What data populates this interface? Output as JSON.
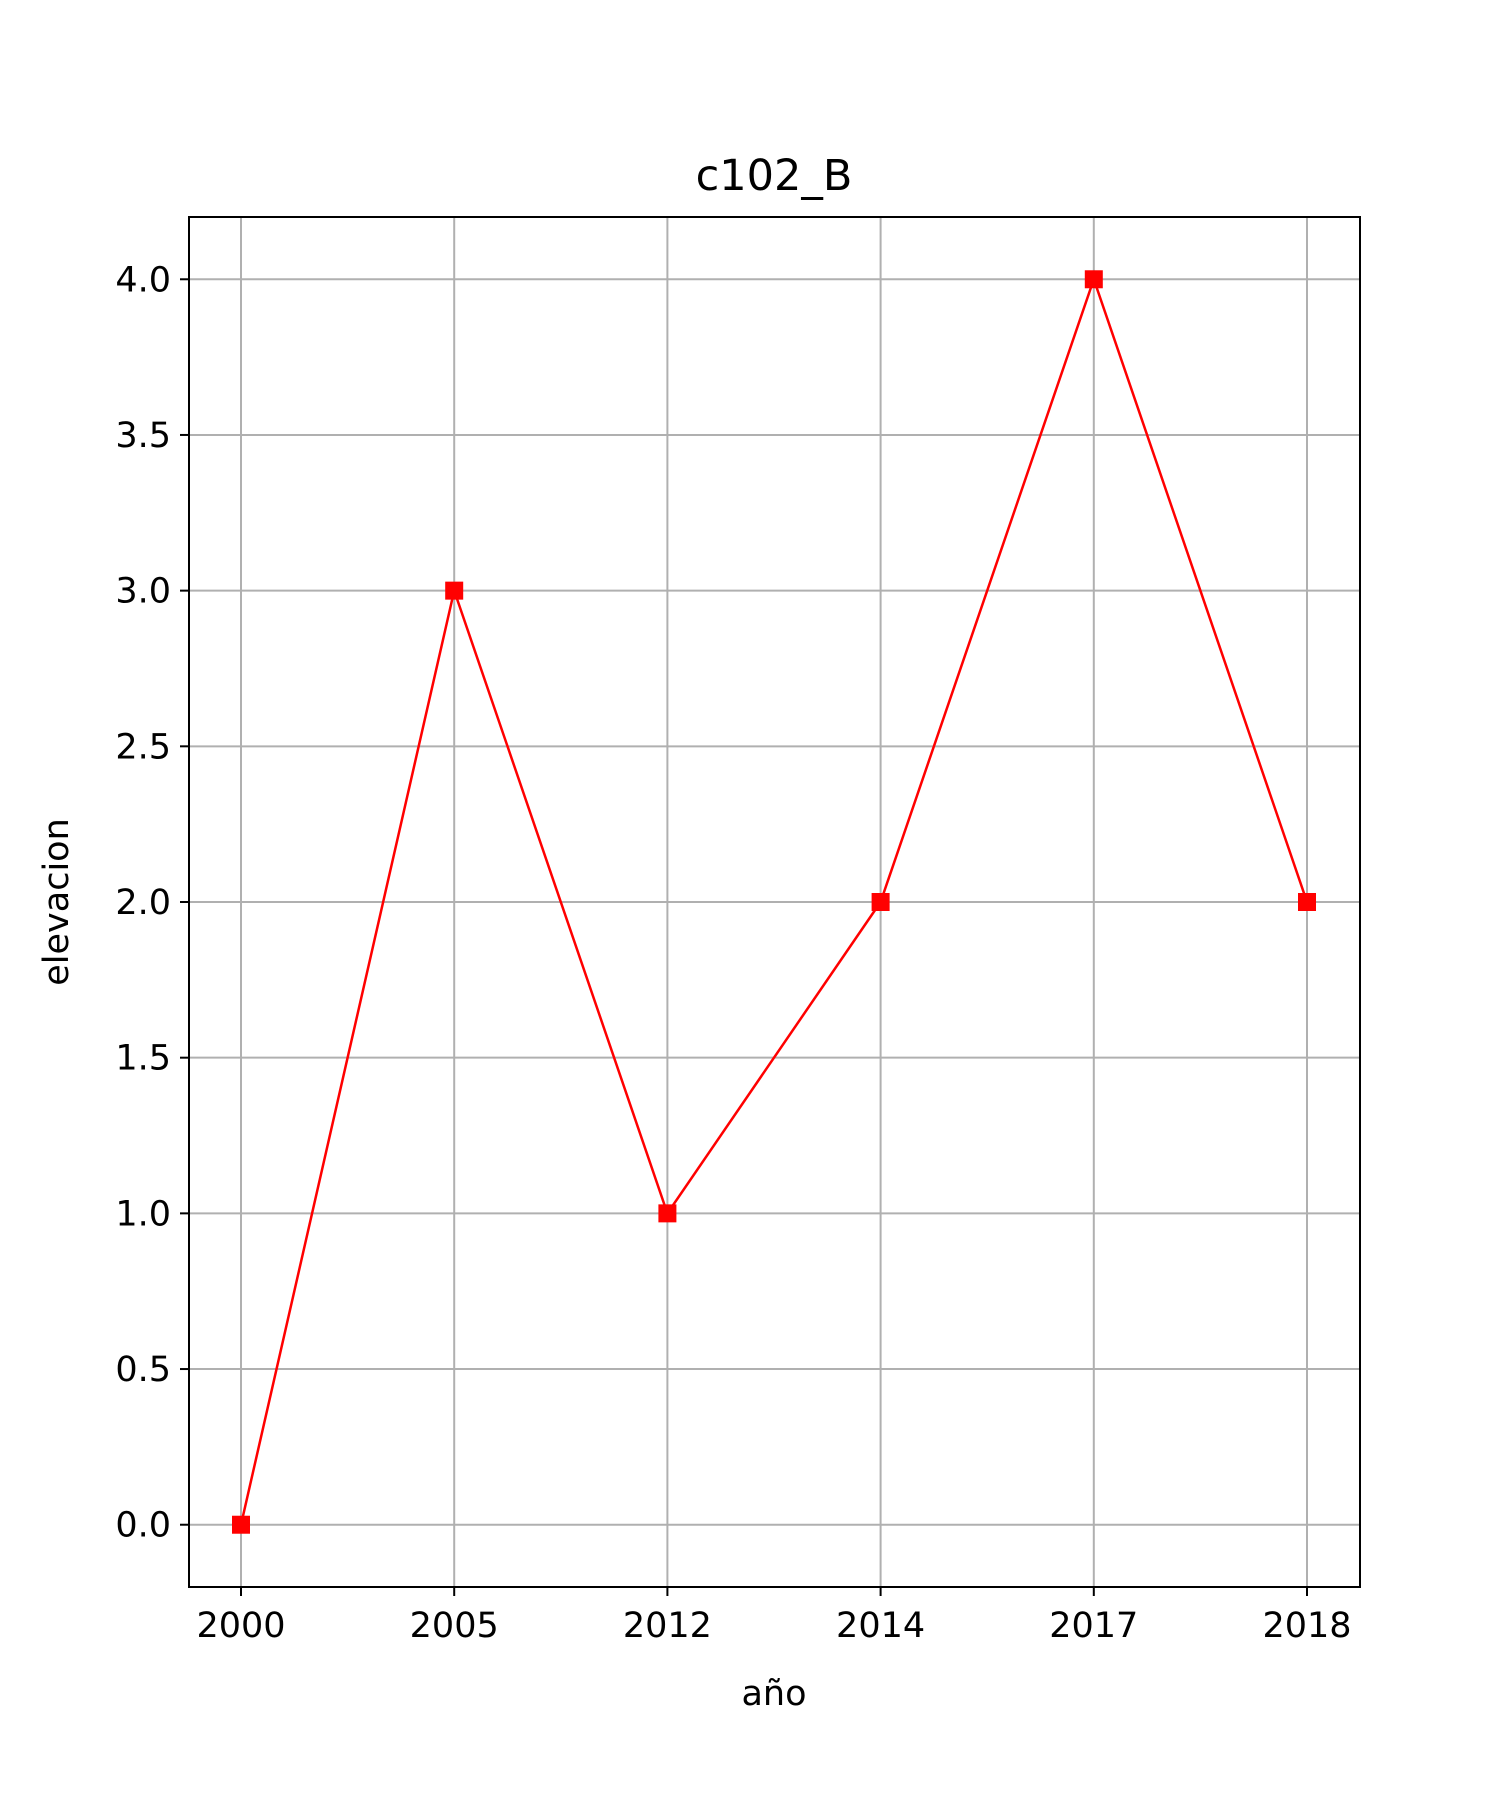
{
  "chart_data": {
    "type": "line",
    "title": "c102_B",
    "xlabel": "año",
    "ylabel": "elevacion",
    "categories": [
      "2000",
      "2005",
      "2012",
      "2014",
      "2017",
      "2018"
    ],
    "series": [
      {
        "values": [
          0,
          3,
          1,
          2,
          4,
          2
        ],
        "color": "#ff0000",
        "marker": "square"
      }
    ],
    "ylim": [
      -0.2,
      4.2
    ],
    "yticks": [
      "0.0",
      "0.5",
      "1.0",
      "1.5",
      "2.0",
      "2.5",
      "3.0",
      "3.5",
      "4.0"
    ],
    "grid": true
  }
}
